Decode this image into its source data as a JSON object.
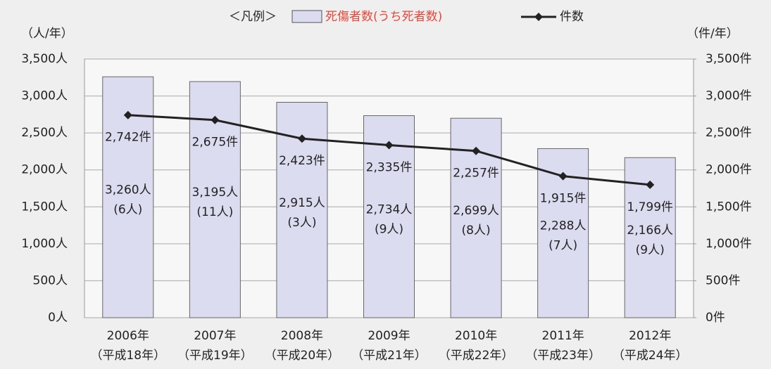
{
  "chart_data": {
    "type": "bar_line",
    "legend_title": "＜凡例＞",
    "y_label": "（人/年）",
    "y2_label": "（件/年）",
    "categories": [
      [
        "2006年",
        "（平成18年）"
      ],
      [
        "2007年",
        "（平成19年）"
      ],
      [
        "2008年",
        "（平成20年）"
      ],
      [
        "2009年",
        "（平成21年）"
      ],
      [
        "2010年",
        "（平成22年）"
      ],
      [
        "2011年",
        "（平成23年）"
      ],
      [
        "2012年",
        "（平成24年）"
      ]
    ],
    "series": [
      {
        "name": "死傷者数(うち死者数)",
        "type": "bar",
        "color": "#dcdcf0",
        "label_color": "#e8473a",
        "values": [
          3260,
          3195,
          2915,
          2734,
          2699,
          2288,
          2166
        ],
        "value_labels": [
          "3,260人",
          "3,195人",
          "2,915人",
          "2,734人",
          "2,699人",
          "2,288人",
          "2,166人"
        ],
        "deaths": [
          6,
          11,
          3,
          9,
          8,
          7,
          9
        ],
        "deaths_labels": [
          "(6人)",
          "(11人)",
          "(3人)",
          "(9人)",
          "(8人)",
          "(7人)",
          "(9人)"
        ]
      },
      {
        "name": "件数",
        "type": "line",
        "axis": "y2",
        "color": "#222222",
        "values": [
          2742,
          2675,
          2423,
          2335,
          2257,
          1915,
          1799
        ],
        "value_labels": [
          "2,742件",
          "2,675件",
          "2,423件",
          "2,335件",
          "2,257件",
          "1,915件",
          "1,799件"
        ]
      }
    ],
    "ylim": [
      0,
      3500
    ],
    "yticks": [
      {
        "value": 0,
        "label": "0人"
      },
      {
        "value": 500,
        "label": "500人"
      },
      {
        "value": 1000,
        "label": "1,000人"
      },
      {
        "value": 1500,
        "label": "1,500人"
      },
      {
        "value": 2000,
        "label": "2,000人"
      },
      {
        "value": 2500,
        "label": "2,500人"
      },
      {
        "value": 3000,
        "label": "3,000人"
      },
      {
        "value": 3500,
        "label": "3,500人"
      }
    ],
    "y2lim": [
      0,
      3500
    ],
    "y2ticks": [
      {
        "value": 0,
        "label": "0件"
      },
      {
        "value": 500,
        "label": "500件"
      },
      {
        "value": 1000,
        "label": "1,000件"
      },
      {
        "value": 1500,
        "label": "1,500件"
      },
      {
        "value": 2000,
        "label": "2,000件"
      },
      {
        "value": 2500,
        "label": "2,500件"
      },
      {
        "value": 3000,
        "label": "3,000件"
      },
      {
        "value": 3500,
        "label": "3,500件"
      }
    ],
    "grid": true
  }
}
